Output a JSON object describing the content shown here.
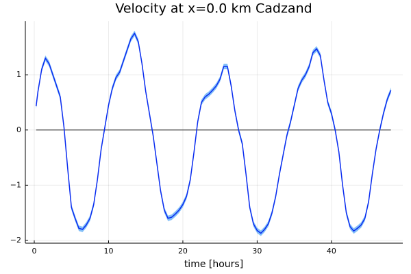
{
  "chart_data": {
    "type": "line",
    "title": "Velocity at x=0.0 km Cadzand",
    "xlabel": "time [hours]",
    "x": [
      0.25,
      0.5,
      1,
      1.5,
      2,
      2.5,
      3,
      3.5,
      4,
      4.5,
      5,
      5.5,
      6,
      6.5,
      7,
      7.5,
      8,
      8.5,
      9,
      9.5,
      10,
      10.5,
      11,
      11.5,
      12,
      12.5,
      13,
      13.5,
      14,
      14.5,
      15,
      15.5,
      16,
      16.5,
      17,
      17.5,
      18,
      18.5,
      19,
      19.5,
      20,
      20.5,
      21,
      21.5,
      22,
      22.5,
      23,
      23.5,
      24,
      24.5,
      25,
      25.5,
      26,
      26.5,
      27,
      27.5,
      28,
      28.5,
      29,
      29.5,
      30,
      30.5,
      31,
      31.5,
      32,
      32.5,
      33,
      33.5,
      34,
      34.5,
      35,
      35.5,
      36,
      36.5,
      37,
      37.5,
      38,
      38.5,
      39,
      39.5,
      40,
      40.5,
      41,
      41.5,
      42,
      42.5,
      43,
      43.5,
      44,
      44.5,
      45,
      45.5,
      46,
      46.5,
      47,
      47.5,
      48
    ],
    "series": [
      {
        "color": "#0a2cf0",
        "band_color": "#5aa9f5",
        "error": 0.05,
        "values": [
          0.43,
          0.7,
          1.1,
          1.3,
          1.2,
          1.0,
          0.8,
          0.6,
          0.05,
          -0.7,
          -1.4,
          -1.6,
          -1.78,
          -1.8,
          -1.72,
          -1.6,
          -1.35,
          -0.9,
          -0.35,
          0.05,
          0.45,
          0.75,
          0.95,
          1.05,
          1.25,
          1.45,
          1.65,
          1.75,
          1.6,
          1.2,
          0.7,
          0.3,
          -0.1,
          -0.6,
          -1.1,
          -1.45,
          -1.6,
          -1.58,
          -1.52,
          -1.45,
          -1.35,
          -1.2,
          -0.9,
          -0.4,
          0.15,
          0.5,
          0.6,
          0.65,
          0.72,
          0.8,
          0.92,
          1.15,
          1.15,
          0.8,
          0.35,
          0.0,
          -0.25,
          -0.8,
          -1.4,
          -1.7,
          -1.82,
          -1.87,
          -1.8,
          -1.7,
          -1.5,
          -1.2,
          -0.8,
          -0.45,
          -0.1,
          0.15,
          0.45,
          0.75,
          0.9,
          1.0,
          1.15,
          1.4,
          1.47,
          1.35,
          0.9,
          0.5,
          0.3,
          0.0,
          -0.4,
          -1.0,
          -1.5,
          -1.75,
          -1.83,
          -1.78,
          -1.72,
          -1.6,
          -1.3,
          -0.8,
          -0.35,
          0.0,
          0.3,
          0.55,
          0.72
        ]
      }
    ],
    "hline": 0,
    "hline_color": "#444444",
    "xlim": [
      -1.2,
      49.6
    ],
    "ylim": [
      -2.05,
      1.97
    ],
    "xticks": [
      0,
      10,
      20,
      30,
      40
    ],
    "yticks": [
      {
        "value": -2,
        "label": "−2"
      },
      {
        "value": -1,
        "label": "−1"
      },
      0,
      1
    ],
    "grid": true
  }
}
